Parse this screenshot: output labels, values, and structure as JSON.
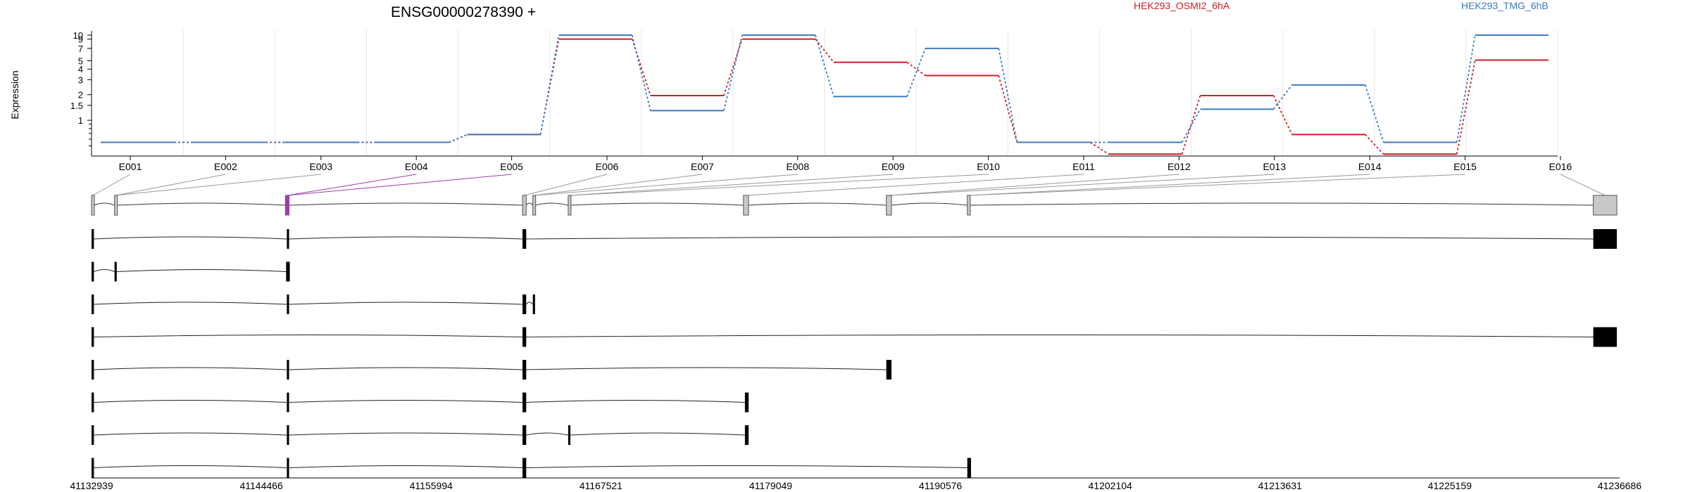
{
  "chart_data": {
    "type": "line",
    "title": "ENSG00000278390 +",
    "ylabel": "Expression",
    "yscale": "log",
    "grid": true,
    "legend_position": "top",
    "categories": [
      "E001",
      "E002",
      "E003",
      "E004",
      "E005",
      "E006",
      "E007",
      "E008",
      "E009",
      "E010",
      "E011",
      "E012",
      "E013",
      "E014",
      "E015",
      "E016"
    ],
    "y_ticks": [
      {
        "value": 1,
        "label": "1"
      },
      {
        "value": 1.5,
        "label": "1.5"
      },
      {
        "value": 2,
        "label": "2"
      },
      {
        "value": 3,
        "label": "3"
      },
      {
        "value": 4,
        "label": "4"
      },
      {
        "value": 5,
        "label": "5"
      },
      {
        "value": 7,
        "label": "7"
      },
      {
        "value": 9,
        "label": "9"
      },
      {
        "value": 10,
        "label": "10"
      }
    ],
    "series": [
      {
        "name": "HEK293_OSMI2_6hA",
        "color": "#cc1f27",
        "values": [
          0.55,
          0.55,
          0.55,
          0.55,
          0.68,
          9.0,
          1.95,
          9.0,
          4.8,
          3.35,
          0.55,
          0.4,
          1.95,
          0.68,
          0.4,
          5.1
        ]
      },
      {
        "name": "HEK293_TMG_6hB",
        "color": "#3c7bbf",
        "values": [
          0.55,
          0.55,
          0.55,
          0.55,
          0.68,
          10.0,
          1.3,
          10.0,
          1.9,
          7.0,
          0.55,
          0.55,
          1.35,
          2.6,
          0.55,
          10.0
        ]
      }
    ],
    "genomic_coordinates": [
      "41132939",
      "41144466",
      "41155994",
      "41167521",
      "41179049",
      "41190576",
      "41202104",
      "41213631",
      "41225159",
      "41236686"
    ],
    "genomic_range": [
      41132939,
      41236686
    ],
    "highlight_color": "#9b3fa8",
    "exon_model": {
      "color": "#c8c8c8",
      "exons": [
        [
          41132939,
          41133100
        ],
        [
          41134500,
          41134650
        ],
        [
          41146100,
          41146350
        ],
        [
          41162200,
          41162450
        ],
        [
          41162900,
          41163050
        ],
        [
          41165300,
          41165450
        ],
        [
          41177200,
          41177550
        ],
        [
          41186900,
          41187250
        ],
        [
          41192400,
          41192600
        ],
        [
          41234900,
          41236500
        ]
      ],
      "highlight_index": 2
    },
    "transcripts": [
      {
        "exons": [
          [
            41132939,
            41133100
          ],
          [
            41146200,
            41146350
          ],
          [
            41162200,
            41162450
          ],
          [
            41234900,
            41236500
          ]
        ]
      },
      {
        "exons": [
          [
            41132939,
            41133100
          ],
          [
            41134500,
            41134650
          ],
          [
            41146150,
            41146400
          ]
        ]
      },
      {
        "exons": [
          [
            41132939,
            41133100
          ],
          [
            41146200,
            41146350
          ],
          [
            41162200,
            41162450
          ],
          [
            41162900,
            41163050
          ]
        ]
      },
      {
        "exons": [
          [
            41132939,
            41133100
          ],
          [
            41162200,
            41162450
          ],
          [
            41234900,
            41236500
          ]
        ]
      },
      {
        "exons": [
          [
            41132939,
            41133100
          ],
          [
            41146200,
            41146350
          ],
          [
            41162200,
            41162450
          ],
          [
            41186900,
            41187250
          ]
        ]
      },
      {
        "exons": [
          [
            41132939,
            41133100
          ],
          [
            41146200,
            41146350
          ],
          [
            41162200,
            41162450
          ],
          [
            41177300,
            41177550
          ]
        ]
      },
      {
        "exons": [
          [
            41132939,
            41133100
          ],
          [
            41146200,
            41146350
          ],
          [
            41162200,
            41162450
          ],
          [
            41165300,
            41165450
          ],
          [
            41177300,
            41177550
          ]
        ]
      },
      {
        "exons": [
          [
            41132939,
            41133100
          ],
          [
            41146200,
            41146350
          ],
          [
            41162200,
            41162450
          ],
          [
            41192400,
            41192650
          ]
        ]
      }
    ]
  }
}
